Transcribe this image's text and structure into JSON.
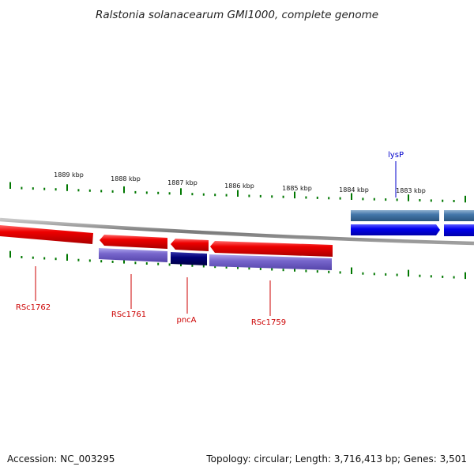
{
  "title": "Ralstonia solanacearum GMI1000, complete genome",
  "scale_labels": [
    "1889 kbp",
    "1888 kbp",
    "1887 kbp",
    "1886 kbp",
    "1885 kbp",
    "1884 kbp",
    "1883 kbp"
  ],
  "genes": [
    {
      "name": "RSc1762",
      "strand": "reverse"
    },
    {
      "name": "RSc1761",
      "strand": "reverse"
    },
    {
      "name": "pncA",
      "strand": "reverse"
    },
    {
      "name": "RSc1759",
      "strand": "reverse"
    },
    {
      "name": "lysP",
      "strand": "forward"
    }
  ],
  "footer": {
    "accession": "Accession: NC_003295",
    "stats": "Topology: circular; Length: 3,716,413 bp; Genes: 3,501"
  },
  "colors": {
    "backbone": "#8a8a8a",
    "reverse_cds": "#ee0000",
    "reverse_gene": "#7766cc",
    "reverse_gene_dark": "#000077",
    "forward_cds": "#0000ee",
    "forward_gene": "#4477aa",
    "reverse_label": "#cc0000",
    "forward_label": "#0000cc",
    "ticks": "#007700"
  }
}
